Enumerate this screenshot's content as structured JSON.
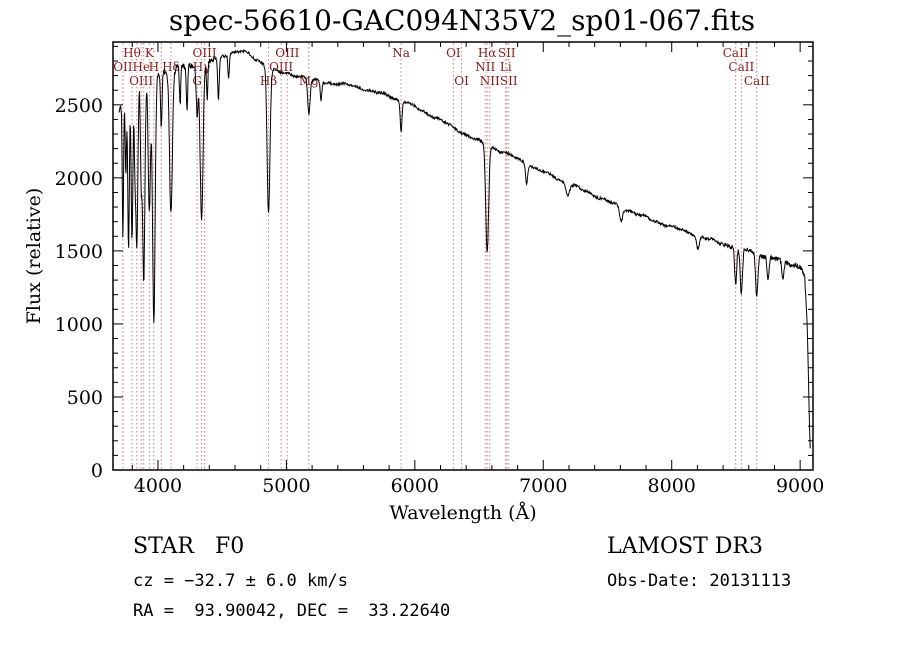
{
  "figure": {
    "background": "#ffffff"
  },
  "chart_data": {
    "type": "line",
    "title": "spec-56610-GAC094N35V2_sp01-067.fits",
    "xlabel": "Wavelength (Å)",
    "ylabel": "Flux (relative)",
    "xlim": [
      3650,
      9100
    ],
    "ylim": [
      0,
      2930
    ],
    "xticks": [
      4000,
      5000,
      6000,
      7000,
      8000,
      9000
    ],
    "x_minor_step": 200,
    "yticks": [
      0,
      500,
      1000,
      1500,
      2000,
      2500
    ],
    "y_minor_step": 100,
    "grid": false,
    "line_color": "#000000",
    "marker_line_color": "#c97b7b",
    "marker_label_color": "#8b1a1a",
    "label_rows_y": [
      57,
      71,
      85
    ],
    "spectral_lines": [
      {
        "wl": 3727,
        "label": "OII",
        "row": 2
      },
      {
        "wl": 3798,
        "label": "Hθ",
        "row": 1
      },
      {
        "wl": 3835,
        "label": "",
        "row": 0
      },
      {
        "wl": 3869,
        "label": "OIII",
        "row": 3
      },
      {
        "wl": 3889,
        "label": "HeI",
        "row": 2
      },
      {
        "wl": 3933,
        "label": "K",
        "row": 1
      },
      {
        "wl": 3968,
        "label": "H",
        "row": 2
      },
      {
        "wl": 4026,
        "label": "",
        "row": 0
      },
      {
        "wl": 4101,
        "label": "Hδ",
        "row": 2
      },
      {
        "wl": 4305,
        "label": "G",
        "row": 3
      },
      {
        "wl": 4340,
        "label": "Hγ",
        "row": 2
      },
      {
        "wl": 4363,
        "label": "OIII",
        "row": 1
      },
      {
        "wl": 4861,
        "label": "Hβ",
        "row": 3
      },
      {
        "wl": 4959,
        "label": "OIII",
        "row": 2
      },
      {
        "wl": 5007,
        "label": "OIII",
        "row": 1
      },
      {
        "wl": 5175,
        "label": "Mg",
        "row": 3
      },
      {
        "wl": 5893,
        "label": "Na",
        "row": 1
      },
      {
        "wl": 6300,
        "label": "OI",
        "row": 1
      },
      {
        "wl": 6364,
        "label": "OI",
        "row": 3
      },
      {
        "wl": 6548,
        "label": "NII",
        "row": 2
      },
      {
        "wl": 6563,
        "label": "Hα",
        "row": 1
      },
      {
        "wl": 6583,
        "label": "NII",
        "row": 3
      },
      {
        "wl": 6708,
        "label": "Li",
        "row": 2
      },
      {
        "wl": 6716,
        "label": "SII",
        "row": 1
      },
      {
        "wl": 6731,
        "label": "SII",
        "row": 3
      },
      {
        "wl": 8498,
        "label": "CaII",
        "row": 1
      },
      {
        "wl": 8542,
        "label": "CaII",
        "row": 2
      },
      {
        "wl": 8662,
        "label": "CaII",
        "row": 3
      }
    ],
    "continuum": [
      [
        3695,
        2450
      ],
      [
        3750,
        2580
      ],
      [
        3800,
        2640
      ],
      [
        3850,
        2670
      ],
      [
        3900,
        2700
      ],
      [
        3950,
        2710
      ],
      [
        4000,
        2720
      ],
      [
        4100,
        2740
      ],
      [
        4200,
        2760
      ],
      [
        4300,
        2770
      ],
      [
        4400,
        2800
      ],
      [
        4500,
        2830
      ],
      [
        4600,
        2865
      ],
      [
        4650,
        2870
      ],
      [
        4700,
        2850
      ],
      [
        4750,
        2815
      ],
      [
        4800,
        2795
      ],
      [
        4850,
        2770
      ],
      [
        4900,
        2740
      ],
      [
        4950,
        2720
      ],
      [
        5000,
        2710
      ],
      [
        5100,
        2700
      ],
      [
        5150,
        2690
      ],
      [
        5200,
        2665
      ],
      [
        5300,
        2655
      ],
      [
        5400,
        2645
      ],
      [
        5500,
        2630
      ],
      [
        5600,
        2610
      ],
      [
        5700,
        2585
      ],
      [
        5800,
        2560
      ],
      [
        5900,
        2530
      ],
      [
        6000,
        2485
      ],
      [
        6100,
        2440
      ],
      [
        6200,
        2395
      ],
      [
        6300,
        2345
      ],
      [
        6400,
        2295
      ],
      [
        6500,
        2250
      ],
      [
        6600,
        2210
      ],
      [
        6700,
        2170
      ],
      [
        6800,
        2130
      ],
      [
        6900,
        2085
      ],
      [
        7000,
        2040
      ],
      [
        7100,
        2000
      ],
      [
        7200,
        1960
      ],
      [
        7300,
        1920
      ],
      [
        7400,
        1880
      ],
      [
        7500,
        1840
      ],
      [
        7600,
        1805
      ],
      [
        7700,
        1765
      ],
      [
        7800,
        1725
      ],
      [
        7900,
        1695
      ],
      [
        8000,
        1665
      ],
      [
        8100,
        1635
      ],
      [
        8200,
        1605
      ],
      [
        8300,
        1575
      ],
      [
        8400,
        1550
      ],
      [
        8500,
        1525
      ],
      [
        8600,
        1505
      ],
      [
        8700,
        1470
      ],
      [
        8800,
        1445
      ],
      [
        8900,
        1420
      ],
      [
        8970,
        1400
      ],
      [
        9010,
        1385
      ],
      [
        9035,
        1330
      ],
      [
        9055,
        1000
      ],
      [
        9070,
        400
      ],
      [
        9078,
        150
      ]
    ],
    "absorption_features": [
      [
        3727,
        950,
        5
      ],
      [
        3750,
        550,
        5
      ],
      [
        3771,
        1100,
        6
      ],
      [
        3798,
        1050,
        7
      ],
      [
        3820,
        450,
        5
      ],
      [
        3835,
        1150,
        8
      ],
      [
        3869,
        650,
        6
      ],
      [
        3889,
        1400,
        9
      ],
      [
        3933,
        950,
        9
      ],
      [
        3968,
        1700,
        10
      ],
      [
        4026,
        380,
        6
      ],
      [
        4101,
        980,
        11
      ],
      [
        4172,
        260,
        5
      ],
      [
        4226,
        300,
        5
      ],
      [
        4305,
        330,
        8
      ],
      [
        4340,
        1080,
        11
      ],
      [
        4383,
        260,
        5
      ],
      [
        4471,
        300,
        6
      ],
      [
        4550,
        170,
        5
      ],
      [
        4861,
        1000,
        11
      ],
      [
        5175,
        240,
        9
      ],
      [
        5270,
        130,
        6
      ],
      [
        5893,
        210,
        7
      ],
      [
        6563,
        730,
        11
      ],
      [
        6870,
        130,
        8
      ],
      [
        7190,
        80,
        14
      ],
      [
        7605,
        100,
        12
      ],
      [
        8205,
        90,
        10
      ],
      [
        8498,
        250,
        8
      ],
      [
        8542,
        310,
        9
      ],
      [
        8662,
        290,
        9
      ],
      [
        8750,
        150,
        8
      ],
      [
        8865,
        130,
        8
      ]
    ],
    "noise": {
      "base": 9,
      "blue_amp": 22,
      "red_amp": 15
    },
    "sample_range": [
      3695,
      9078
    ],
    "sample_step": 3.5
  },
  "annotations": {
    "star_class": "STAR   F0",
    "survey": "LAMOST DR3",
    "cz": "cz = −32.7 ± 6.0 km/s",
    "obs_date": "Obs-Date: 20131113",
    "ra_dec": "RA =  93.90042, DEC =  33.22640"
  }
}
